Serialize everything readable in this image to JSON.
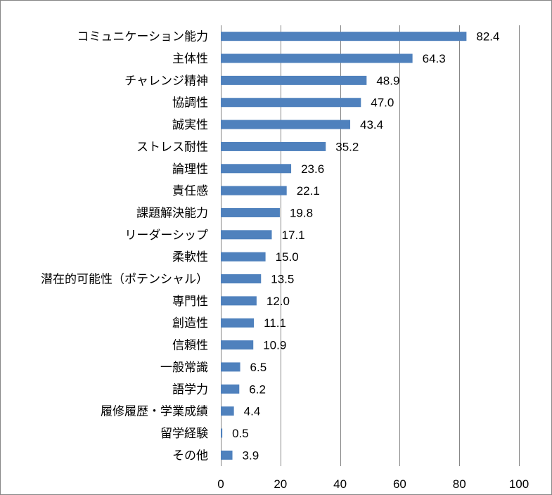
{
  "chart_data": {
    "type": "bar",
    "orientation": "horizontal",
    "categories": [
      "コミュニケーション能力",
      "主体性",
      "チャレンジ精神",
      "協調性",
      "誠実性",
      "ストレス耐性",
      "論理性",
      "責任感",
      "課題解決能力",
      "リーダーシップ",
      "柔軟性",
      "潜在的可能性（ポテンシャル）",
      "専門性",
      "創造性",
      "信頼性",
      "一般常識",
      "語学力",
      "履修履歴・学業成績",
      "留学経験",
      "その他"
    ],
    "values": [
      82.4,
      64.3,
      48.9,
      47.0,
      43.4,
      35.2,
      23.6,
      22.1,
      19.8,
      17.1,
      15.0,
      13.5,
      12.0,
      11.1,
      10.9,
      6.5,
      6.2,
      4.4,
      0.5,
      3.9
    ],
    "value_labels": [
      "82.4",
      "64.3",
      "48.9",
      "47.0",
      "43.4",
      "35.2",
      "23.6",
      "22.1",
      "19.8",
      "17.1",
      "15.0",
      "13.5",
      "12.0",
      "11.1",
      "10.9",
      "6.5",
      "6.2",
      "4.4",
      "0.5",
      "3.9"
    ],
    "xlim": [
      0,
      100
    ],
    "xticks": [
      "0",
      "20",
      "40",
      "60",
      "80",
      "100"
    ],
    "grid": "vertical",
    "legend": "none",
    "title": "",
    "xlabel": "",
    "ylabel": "",
    "colors": {
      "bar": "#4F81BD",
      "grid": "#868686",
      "frame": "#868686"
    }
  }
}
